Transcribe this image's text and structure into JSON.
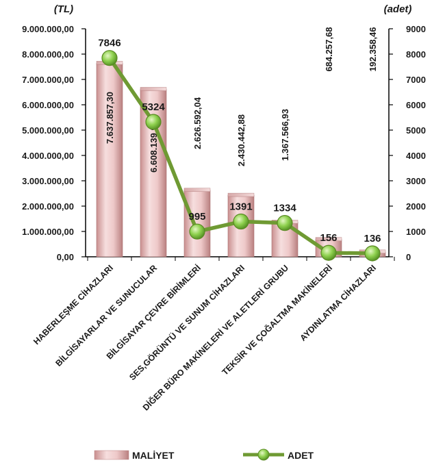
{
  "chart_data": {
    "type": "bar",
    "categories": [
      "HABERLEŞME CİHAZLARI",
      "BİLGİSAYARLAR VE SUNUCULAR",
      "BİLGİSAYAR ÇEVRE BİRİMLERİ",
      "SES,GÖRÜNTÜ VE SUNUM CİHAZLARI",
      "DİĞER BÜRO MAKİNELERİ VE ALETLERİ GRUBU",
      "TEKSİR VE ÇOĞALTMA MAKİNELERİ",
      "AYDINLATMA CİHAZLARI"
    ],
    "series": [
      {
        "name": "MALİYET",
        "type": "bar",
        "axis": "left",
        "values": [
          7637857.3,
          6608139.9,
          2626592.04,
          2430442.88,
          1367566.93,
          684257.68,
          192358.46
        ],
        "labels": [
          "7.637.857,30",
          "6.608.139,90",
          "2.626.592,04",
          "2.430.442,88",
          "1.367.566,93",
          "684.257,68",
          "192.358,46"
        ],
        "color": "#e8bcbc"
      },
      {
        "name": "ADET",
        "type": "line",
        "axis": "right",
        "values": [
          7846,
          5324,
          995,
          1391,
          1334,
          156,
          136
        ],
        "labels": [
          "7846",
          "5324",
          "995",
          "1391",
          "1334",
          "156",
          "136"
        ],
        "color": "#6f9a33"
      }
    ],
    "y_left": {
      "unit_label": "(TL)",
      "range": [
        0,
        9000000
      ],
      "ticks": [
        "0,00",
        "1.000.000,00",
        "2.000.000,00",
        "3.000.000,00",
        "4.000.000,00",
        "5.000.000,00",
        "6.000.000,00",
        "7.000.000,00",
        "8.000.000,00",
        "9.000.000,00"
      ]
    },
    "y_right": {
      "unit_label": "(adet)",
      "range": [
        0,
        9000
      ],
      "ticks": [
        "0",
        "1000",
        "2000",
        "3000",
        "4000",
        "5000",
        "6000",
        "7000",
        "8000",
        "9000"
      ]
    },
    "grid": false,
    "legend_position": "bottom"
  }
}
